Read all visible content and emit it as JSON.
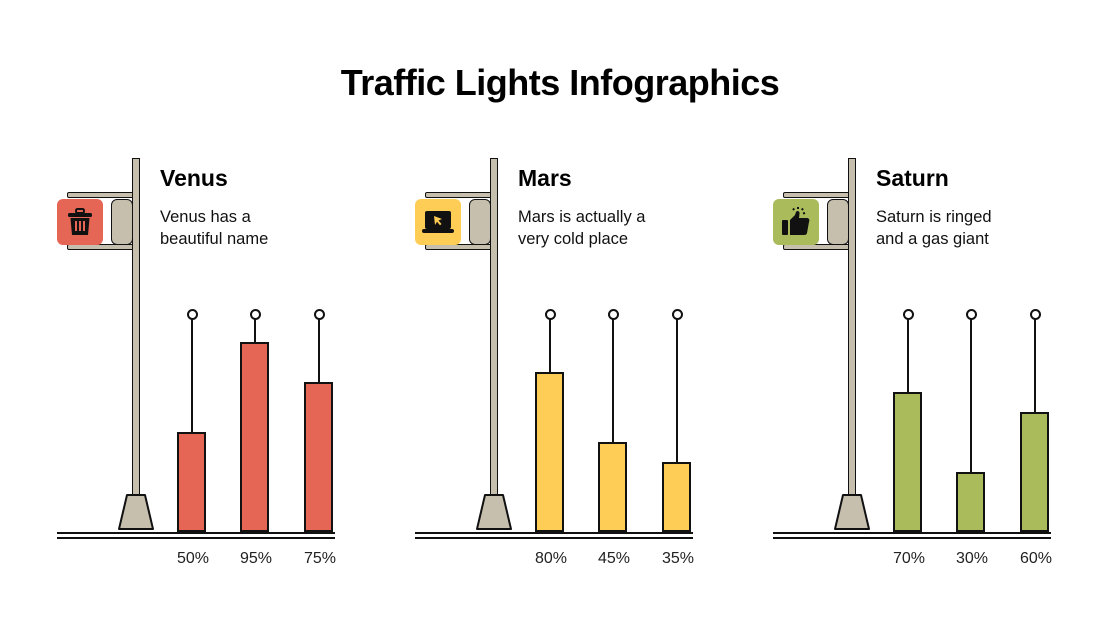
{
  "title": "Traffic Lights Infographics",
  "groups": [
    {
      "name": "Venus",
      "description_line1": "Venus has a",
      "description_line2": "beautiful name",
      "icon": "trash-icon",
      "color": "#e66656",
      "bars": [
        {
          "value": 50,
          "label": "50%"
        },
        {
          "value": 95,
          "label": "95%"
        },
        {
          "value": 75,
          "label": "75%"
        }
      ]
    },
    {
      "name": "Mars",
      "description_line1": "Mars is actually a",
      "description_line2": "very cold place",
      "icon": "laptop-cursor-icon",
      "color": "#fecd55",
      "bars": [
        {
          "value": 80,
          "label": "80%"
        },
        {
          "value": 45,
          "label": "45%"
        },
        {
          "value": 35,
          "label": "35%"
        }
      ]
    },
    {
      "name": "Saturn",
      "description_line1": "Saturn is ringed",
      "description_line2": "and a gas giant",
      "icon": "thumbs-up-icon",
      "color": "#a9bb5a",
      "bars": [
        {
          "value": 70,
          "label": "70%"
        },
        {
          "value": 30,
          "label": "30%"
        },
        {
          "value": 60,
          "label": "60%"
        }
      ]
    }
  ],
  "colors": {
    "pole": "#c7bfae",
    "outline": "#111111"
  },
  "chart_data": [
    {
      "type": "bar",
      "title": "Venus",
      "categories": [
        "1",
        "2",
        "3"
      ],
      "values": [
        50,
        95,
        75
      ],
      "tick_labels": [
        "50%",
        "95%",
        "75%"
      ],
      "color": "#e66656",
      "ylim": [
        0,
        100
      ]
    },
    {
      "type": "bar",
      "title": "Mars",
      "categories": [
        "1",
        "2",
        "3"
      ],
      "values": [
        80,
        45,
        35
      ],
      "tick_labels": [
        "80%",
        "45%",
        "35%"
      ],
      "color": "#fecd55",
      "ylim": [
        0,
        100
      ]
    },
    {
      "type": "bar",
      "title": "Saturn",
      "categories": [
        "1",
        "2",
        "3"
      ],
      "values": [
        70,
        30,
        60
      ],
      "tick_labels": [
        "70%",
        "30%",
        "60%"
      ],
      "color": "#a9bb5a",
      "ylim": [
        0,
        100
      ]
    }
  ]
}
